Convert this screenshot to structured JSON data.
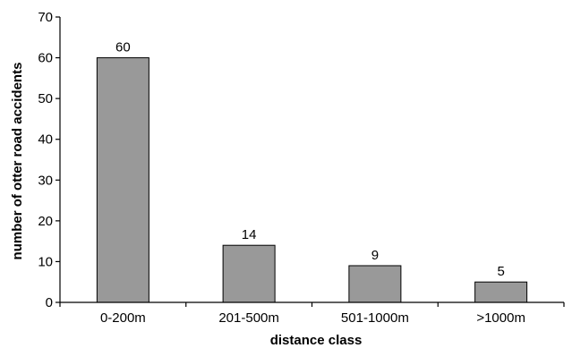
{
  "chart_data": {
    "type": "bar",
    "title": "",
    "xlabel": "distance class",
    "ylabel": "number of otter road accidents",
    "categories": [
      "0-200m",
      "201-500m",
      "501-1000m",
      ">1000m"
    ],
    "values": [
      60,
      14,
      9,
      5
    ],
    "data_labels": [
      "60",
      "14",
      "9",
      "5"
    ],
    "ylim": [
      0,
      70
    ],
    "yticks": [
      0,
      10,
      20,
      30,
      40,
      50,
      60,
      70
    ],
    "ytick_labels": [
      "0",
      "10",
      "20",
      "30",
      "40",
      "50",
      "60",
      "70"
    ],
    "bar_color": "#999999",
    "grid": false,
    "legend": "none"
  }
}
